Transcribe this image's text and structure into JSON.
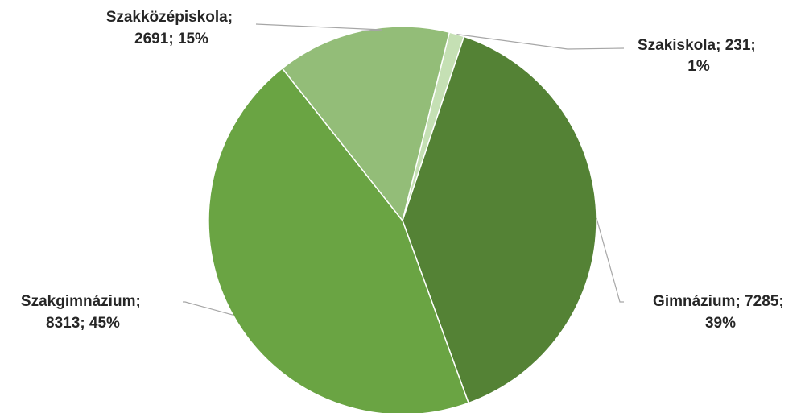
{
  "chart_data": {
    "type": "pie",
    "title": "",
    "slices": [
      {
        "name": "Szakiskola",
        "value": 231,
        "percent": 1,
        "color": "#c5e0b4",
        "label_lines": [
          "Szakiskola; 231;",
          "1%"
        ]
      },
      {
        "name": "Gimnázium",
        "value": 7285,
        "percent": 39,
        "color": "#548235",
        "label_lines": [
          "Gimnázium; 7285;",
          "39%"
        ]
      },
      {
        "name": "Szakgimnázium",
        "value": 8313,
        "percent": 45,
        "color": "#6aa443",
        "label_lines": [
          "Szakgimnázium;",
          "8313; 45%"
        ]
      },
      {
        "name": "Szakközépiskola",
        "value": 2691,
        "percent": 15,
        "color": "#93bd78",
        "label_lines": [
          "Szakközépiskola;",
          "2691; 15%"
        ]
      }
    ],
    "start_angle_deg": 14,
    "data_labels": "outside with leader lines",
    "legend": "none"
  }
}
